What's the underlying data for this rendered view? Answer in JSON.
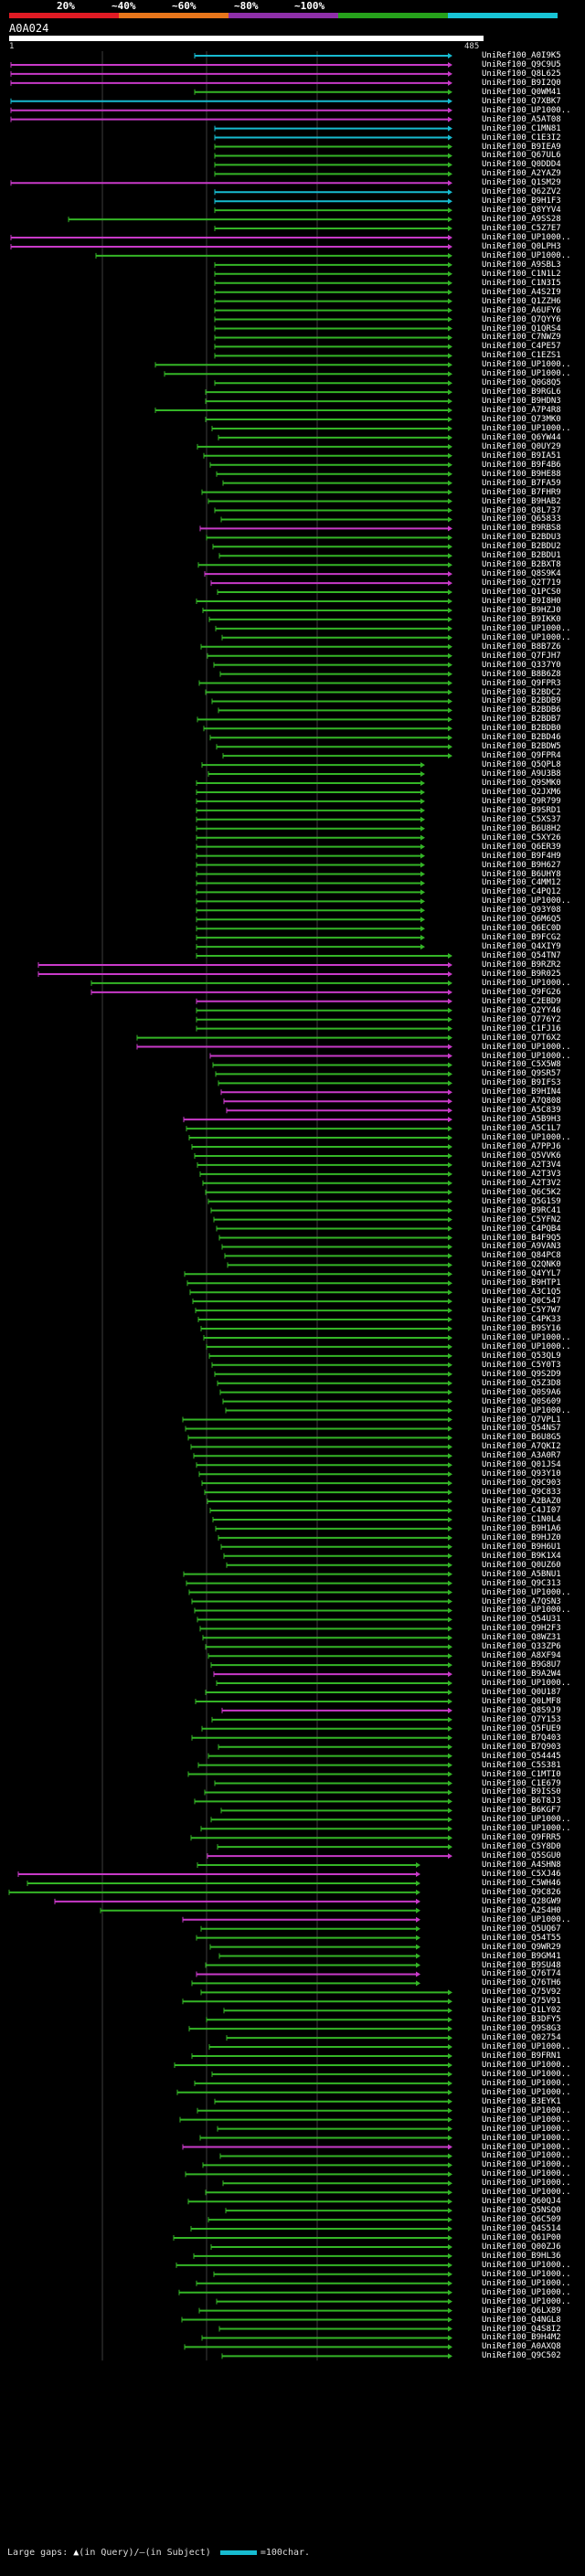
{
  "scale": {
    "labels": [
      "20%",
      "~40%",
      "~60%",
      "~80%",
      "~100%"
    ],
    "colors": [
      "#e01b24",
      "#e8761b",
      "#8e2fa8",
      "#26a21b",
      "#18c5d6"
    ]
  },
  "query": {
    "name": "A0A024",
    "start": "1",
    "end": "485"
  },
  "hit_colors": {
    "cyan": "#17bbd0",
    "green": "#34b526",
    "magenta": "#c83ac8",
    "grid": "#3c3c3c"
  },
  "hits": [
    "UniRef100_A0I9K5",
    "UniRef100_Q9C9U5",
    "UniRef100_Q8L625",
    "UniRef100_B9I2Q0",
    "UniRef100_Q0WM41",
    "UniRef100_Q7XBK7",
    "UniRef100_UP1000..",
    "UniRef100_A5AT08",
    "UniRef100_C1MN81",
    "UniRef100_C1E3I2",
    "UniRef100_B9IEA9",
    "UniRef100_Q67UL6",
    "UniRef100_Q0DDD4",
    "UniRef100_A2YAZ9",
    "UniRef100_Q1SM29",
    "UniRef100_Q62ZV2",
    "UniRef100_B9H1F3",
    "UniRef100_Q8YYV4",
    "UniRef100_A9SS28",
    "UniRef100_C5Z7E7",
    "UniRef100_UP1000..",
    "UniRef100_Q0LPH3",
    "UniRef100_UP1000..",
    "UniRef100_A9SBL3",
    "UniRef100_C1N1L2",
    "UniRef100_C1N3I5",
    "UniRef100_A4S2I9",
    "UniRef100_Q1ZZH6",
    "UniRef100_A6UFY6",
    "UniRef100_Q7QYY6",
    "UniRef100_Q1QRS4",
    "UniRef100_C7NWZ9",
    "UniRef100_C4PE57",
    "UniRef100_C1EZS1",
    "UniRef100_UP1000..",
    "UniRef100_UP1000..",
    "UniRef100_Q0G8Q5",
    "UniRef100_B9RGL6",
    "UniRef100_B9HDN3",
    "UniRef100_A7P4R8",
    "UniRef100_Q73MK0",
    "UniRef100_UP1000..",
    "UniRef100_Q6YW44",
    "UniRef100_Q0UY29",
    "UniRef100_B9IA51",
    "UniRef100_B9F4B6",
    "UniRef100_B9HE88",
    "UniRef100_B7FA59",
    "UniRef100_B7FHR9",
    "UniRef100_B9HAB2",
    "UniRef100_Q8L737",
    "UniRef100_Q65833",
    "UniRef100_B9RBS8",
    "UniRef100_B2BDU3",
    "UniRef100_B2BDU2",
    "UniRef100_B2BDU1",
    "UniRef100_B2BXT8",
    "UniRef100_Q8S9K4",
    "UniRef100_Q2T719",
    "UniRef100_Q1PCS0",
    "UniRef100_B9I8H0",
    "UniRef100_B9HZJ0",
    "UniRef100_B9IKK0",
    "UniRef100_UP1000..",
    "UniRef100_UP1000..",
    "UniRef100_B8B7Z6",
    "UniRef100_Q7FJH7",
    "UniRef100_Q337Y0",
    "UniRef100_B8B6Z8",
    "UniRef100_Q9FPR3",
    "UniRef100_B2BDC2",
    "UniRef100_B2BDB9",
    "UniRef100_B2BDB6",
    "UniRef100_B2BDB7",
    "UniRef100_B2BDB0",
    "UniRef100_B2BD46",
    "UniRef100_B2BDW5",
    "UniRef100_Q9FPR4",
    "UniRef100_Q5QPL8",
    "UniRef100_A9U3B8",
    "UniRef100_Q9SMK0",
    "UniRef100_Q2JXM6",
    "UniRef100_Q9R799",
    "UniRef100_B9SRD1",
    "UniRef100_C5XS37",
    "UniRef100_B6U8H2",
    "UniRef100_C5XY26",
    "UniRef100_Q6ER39",
    "UniRef100_B9F4H9",
    "UniRef100_B9H627",
    "UniRef100_B6UHY8",
    "UniRef100_C4MM12",
    "UniRef100_C4PQ12",
    "UniRef100_UP1000..",
    "UniRef100_Q93Y08",
    "UniRef100_Q6M6Q5",
    "UniRef100_Q6EC0D",
    "UniRef100_B9FCG2",
    "UniRef100_Q4XIY9",
    "UniRef100_Q54TN7",
    "UniRef100_B9RZR2",
    "UniRef100_B9R025",
    "UniRef100_UP1000..",
    "UniRef100_Q9FG26",
    "UniRef100_C2EBD9",
    "UniRef100_Q2YY46",
    "UniRef100_Q776Y2",
    "UniRef100_C1FJ16",
    "UniRef100_Q7T6X2",
    "UniRef100_UP1000..",
    "UniRef100_UP1000..",
    "UniRef100_C5X5W8",
    "UniRef100_Q9SR57",
    "UniRef100_B9IFS3",
    "UniRef100_B9HIN4",
    "UniRef100_A7Q808",
    "UniRef100_A5C839",
    "UniRef100_A5B9H3",
    "UniRef100_A5C1L7",
    "UniRef100_UP1000..",
    "UniRef100_A7PPJ6",
    "UniRef100_Q5VVK6",
    "UniRef100_A2T3V4",
    "UniRef100_A2T3V3",
    "UniRef100_A2T3V2",
    "UniRef100_Q6C5K2",
    "UniRef100_Q5G1S9",
    "UniRef100_B9RC41",
    "UniRef100_C5YFN2",
    "UniRef100_C4PQB4",
    "UniRef100_B4F9Q5",
    "UniRef100_A9VAN3",
    "UniRef100_Q84PC8",
    "UniRef100_Q2QNK0",
    "UniRef100_Q4YYL7",
    "UniRef100_B9HTP1",
    "UniRef100_A3C1Q5",
    "UniRef100_Q0C547",
    "UniRef100_C5Y7W7",
    "UniRef100_C4PK33",
    "UniRef100_B9SY16",
    "UniRef100_UP1000..",
    "UniRef100_UP1000..",
    "UniRef100_Q53QL9",
    "UniRef100_C5Y0T3",
    "UniRef100_Q9S2D9",
    "UniRef100_Q5Z3D8",
    "UniRef100_Q0S9A6",
    "UniRef100_Q0S609",
    "UniRef100_UP1000..",
    "UniRef100_Q7VPL1",
    "UniRef100_Q54NS7",
    "UniRef100_B6U8G5",
    "UniRef100_A7QKI2",
    "UniRef100_A3A0R7",
    "UniRef100_Q01JS4",
    "UniRef100_Q93Y10",
    "UniRef100_Q9C903",
    "UniRef100_Q9C833",
    "UniRef100_A2BAZ0",
    "UniRef100_C4JI07",
    "UniRef100_C1N0L4",
    "UniRef100_B9H1A6",
    "UniRef100_B9HJZ0",
    "UniRef100_B9H6U1",
    "UniRef100_B9K1X4",
    "UniRef100_Q0UZ60",
    "UniRef100_A5BNU1",
    "UniRef100_Q9C313",
    "UniRef100_UP1000..",
    "UniRef100_A7QSN3",
    "UniRef100_UP1000..",
    "UniRef100_Q54U31",
    "UniRef100_Q9H2F3",
    "UniRef100_Q8WZ31",
    "UniRef100_Q33ZP6",
    "UniRef100_A8XF94",
    "UniRef100_B9G8U7",
    "UniRef100_B9A2W4",
    "UniRef100_UP1000..",
    "UniRef100_Q0U187",
    "UniRef100_Q0LMF8",
    "UniRef100_Q8S9J9",
    "UniRef100_Q7Y153",
    "UniRef100_Q5FUE9",
    "UniRef100_B7Q403",
    "UniRef100_B7Q903",
    "UniRef100_Q54445",
    "UniRef100_C5S381",
    "UniRef100_C1MTI0",
    "UniRef100_C1E679",
    "UniRef100_B9ISS0",
    "UniRef100_B6T8J3",
    "UniRef100_B6KGF7",
    "UniRef100_UP1000..",
    "UniRef100_UP1000..",
    "UniRef100_Q9FRR5",
    "UniRef100_C5Y8D0",
    "UniRef100_Q5SGU0",
    "UniRef100_A4SHN8",
    "UniRef100_C5XJ46",
    "UniRef100_C5WH46",
    "UniRef100_Q9C826",
    "UniRef100_Q28GW9",
    "UniRef100_A2S4H0",
    "UniRef100_UP1000..",
    "UniRef100_Q5UQ67",
    "UniRef100_Q54T55",
    "UniRef100_Q9WR29",
    "UniRef100_B9GM41",
    "UniRef100_B9SU48",
    "UniRef100_Q76T74",
    "UniRef100_Q76TH6",
    "UniRef100_Q75V92",
    "UniRef100_Q75V91",
    "UniRef100_Q1LY02",
    "UniRef100_B3DFY5",
    "UniRef100_Q9S8G3",
    "UniRef100_Q02754",
    "UniRef100_UP1000..",
    "UniRef100_B9FRN1",
    "UniRef100_UP1000..",
    "UniRef100_UP1000..",
    "UniRef100_UP1000..",
    "UniRef100_UP1000..",
    "UniRef100_B3EYK1",
    "UniRef100_UP1000..",
    "UniRef100_UP1000..",
    "UniRef100_UP1000..",
    "UniRef100_UP1000..",
    "UniRef100_UP1000..",
    "UniRef100_UP1000..",
    "UniRef100_UP1000..",
    "UniRef100_UP1000..",
    "UniRef100_UP1000..",
    "UniRef100_UP1000..",
    "UniRef100_Q60QJ4",
    "UniRef100_Q5NSQ0",
    "UniRef100_Q6C509",
    "UniRef100_Q4S514",
    "UniRef100_Q61P00",
    "UniRef100_Q00ZJ6",
    "UniRef100_B9HL36",
    "UniRef100_UP1000..",
    "UniRef100_UP1000..",
    "UniRef100_UP1000..",
    "UniRef100_UP1000..",
    "UniRef100_UP1000..",
    "UniRef100_Q6LX89",
    "UniRef100_Q4NGL8",
    "UniRef100_Q4S8I2",
    "UniRef100_B9H4M2",
    "UniRef100_A0AXQ8",
    "UniRef100_Q9C502"
  ],
  "legend": {
    "large_gaps": "Large gaps:",
    "marker_glyph": "▲",
    "in_query": "(in Query)/",
    "dash_glyph": "—",
    "in_subject": "(in Subject)",
    "scale_text": "=100char."
  }
}
